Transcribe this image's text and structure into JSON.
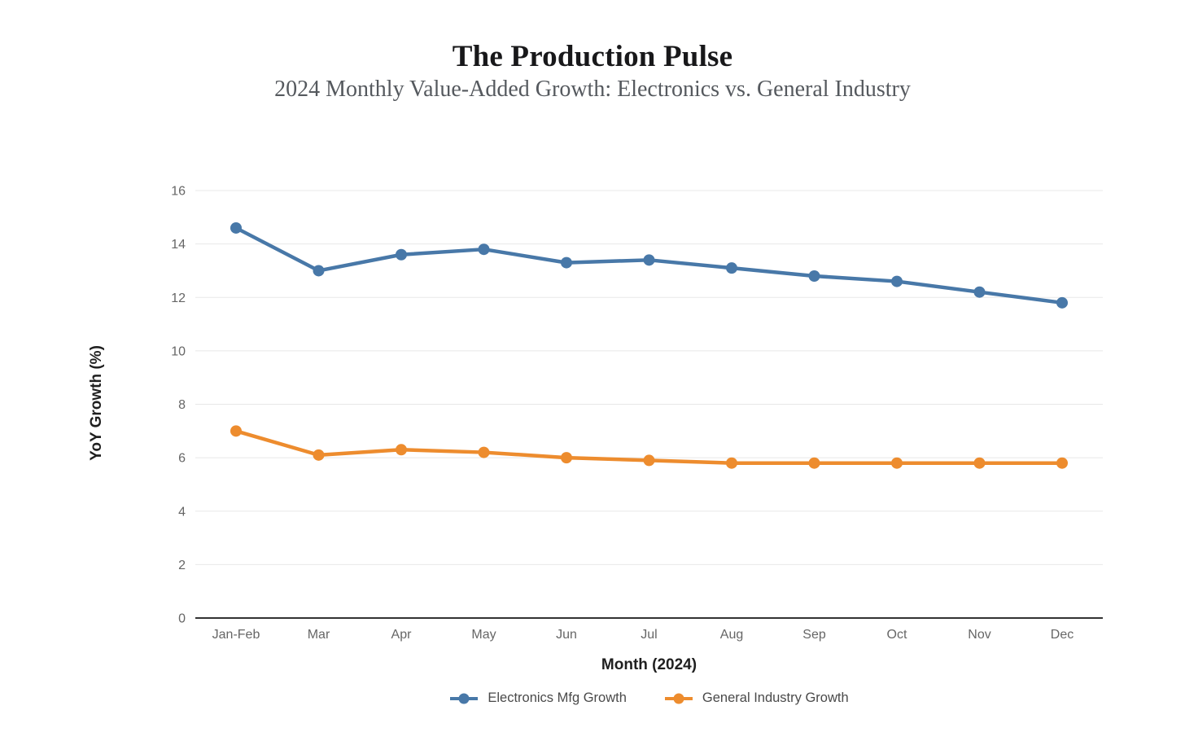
{
  "header": {
    "title": "The Production Pulse",
    "subtitle": "2024 Monthly Value-Added Growth: Electronics vs. General Industry"
  },
  "chart_data": {
    "type": "line",
    "title": "The Production Pulse",
    "subtitle": "2024 Monthly Value-Added Growth: Electronics vs. General Industry",
    "categories": [
      "Jan-Feb",
      "Mar",
      "Apr",
      "May",
      "Jun",
      "Jul",
      "Aug",
      "Sep",
      "Oct",
      "Nov",
      "Dec"
    ],
    "series": [
      {
        "name": "Electronics Mfg Growth",
        "color": "#4878a8",
        "values": [
          14.6,
          13.0,
          13.6,
          13.8,
          13.3,
          13.4,
          13.1,
          12.8,
          12.6,
          12.2,
          11.8
        ]
      },
      {
        "name": "General Industry Growth",
        "color": "#ed8c2e",
        "values": [
          7.0,
          6.1,
          6.3,
          6.2,
          6.0,
          5.9,
          5.8,
          5.8,
          5.8,
          5.8,
          5.8
        ]
      }
    ],
    "xlabel": "Month (2024)",
    "ylabel": "YoY Growth (%)",
    "ylim": [
      0,
      16
    ],
    "ytick_step": 2,
    "grid": true,
    "legend_position": "bottom",
    "grid_color": "#e8e8e8",
    "axis_color": "#333333",
    "tick_text_color": "#666666"
  }
}
